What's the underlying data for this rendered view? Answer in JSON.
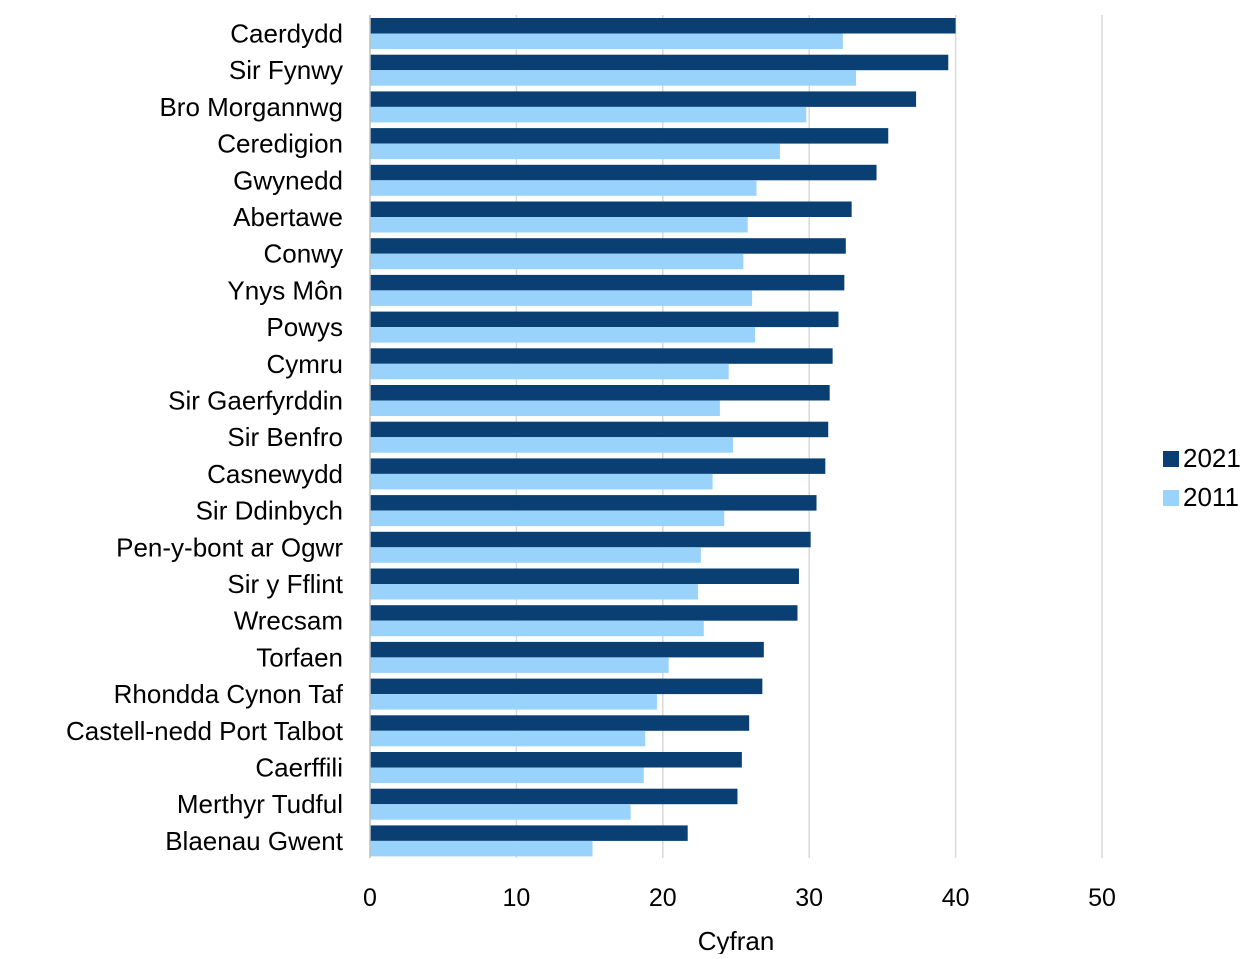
{
  "chart_data": {
    "type": "bar",
    "orientation": "horizontal",
    "title": "",
    "xlabel": "Cyfran",
    "ylabel": "",
    "xlim": [
      0,
      50
    ],
    "xticks": [
      0,
      10,
      20,
      30,
      40,
      50
    ],
    "grid": true,
    "legend_position": "right",
    "categories": [
      "Caerdydd",
      "Sir Fynwy",
      "Bro Morgannwg",
      "Ceredigion",
      "Gwynedd",
      "Abertawe",
      "Conwy",
      "Ynys Môn",
      "Powys",
      "Cymru",
      "Sir Gaerfyrddin",
      "Sir Benfro",
      "Casnewydd",
      "Sir Ddinbych",
      "Pen-y-bont ar Ogwr",
      "Sir y Fflint",
      "Wrecsam",
      "Torfaen",
      "Rhondda Cynon Taf",
      "Castell-nedd Port Talbot",
      "Caerffili",
      "Merthyr Tudful",
      "Blaenau Gwent"
    ],
    "series": [
      {
        "name": "2021",
        "color": "#0a3f73",
        "values": [
          40.0,
          39.5,
          37.3,
          35.4,
          34.6,
          32.9,
          32.5,
          32.4,
          32.0,
          31.6,
          31.4,
          31.3,
          31.1,
          30.5,
          30.1,
          29.3,
          29.2,
          26.9,
          26.8,
          25.9,
          25.4,
          25.1,
          21.7
        ]
      },
      {
        "name": "2011",
        "color": "#99d3fb",
        "values": [
          32.3,
          33.2,
          29.8,
          28.0,
          26.4,
          25.8,
          25.5,
          26.1,
          26.3,
          24.5,
          23.9,
          24.8,
          23.4,
          24.2,
          22.6,
          22.4,
          22.8,
          20.4,
          19.6,
          18.8,
          18.7,
          17.8,
          15.2
        ]
      }
    ]
  }
}
